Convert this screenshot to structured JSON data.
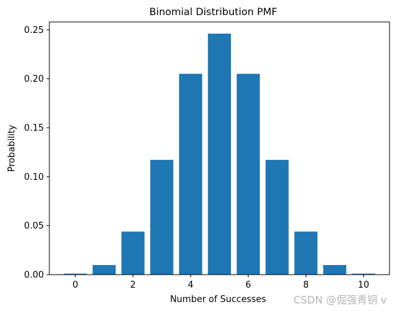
{
  "chart_data": {
    "type": "bar",
    "title": "Binomial Distribution PMF",
    "xlabel": "Number of Successes",
    "ylabel": "Probability",
    "categories": [
      0,
      1,
      2,
      3,
      4,
      5,
      6,
      7,
      8,
      9,
      10
    ],
    "values": [
      0.00098,
      0.00977,
      0.04395,
      0.11719,
      0.20508,
      0.24609,
      0.20508,
      0.11719,
      0.04395,
      0.00977,
      0.00098
    ],
    "xlim": [
      -0.9,
      10.9
    ],
    "ylim": [
      0,
      0.258
    ],
    "xticks": [
      0,
      2,
      4,
      6,
      8,
      10
    ],
    "xtick_labels": [
      "0",
      "2",
      "4",
      "6",
      "8",
      "10"
    ],
    "yticks": [
      0.0,
      0.05,
      0.1,
      0.15,
      0.2,
      0.25
    ],
    "ytick_labels": [
      "0.00",
      "0.05",
      "0.10",
      "0.15",
      "0.20",
      "0.25"
    ],
    "bar_color": "#1f77b4",
    "grid": false,
    "legend": "none"
  },
  "watermark": "CSDN @倔强青铜 v"
}
